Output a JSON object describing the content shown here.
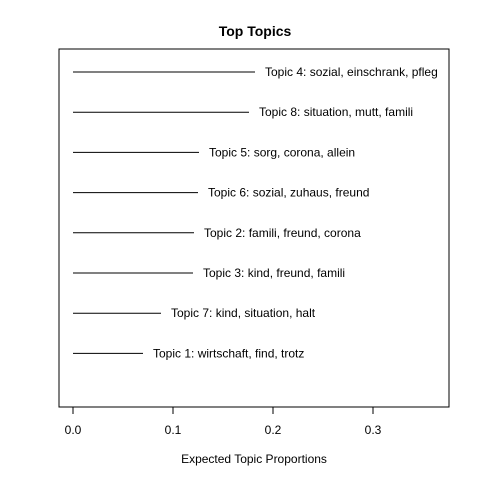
{
  "chart_data": {
    "type": "bar",
    "title": "Top Topics",
    "xlabel": "Expected Topic Proportions",
    "ylabel": "",
    "xlim": [
      -0.0132,
      0.3744
    ],
    "xticks": [
      "0.0",
      "0.1",
      "0.2",
      "0.3"
    ],
    "xtick_values": [
      0,
      0.1,
      0.2,
      0.3
    ],
    "categories": [
      "Topic 4: sozial, einschrank, pfleg",
      "Topic 8: situation, mutt, famili",
      "Topic 5: sorg, corona, allein",
      "Topic 6: sozial, zuhaus, freund",
      "Topic 2: famili, freund, corona",
      "Topic 3: kind, freund, famili",
      "Topic 7: kind, situation, halt",
      "Topic 1: wirtschaft, find, trotz"
    ],
    "values": [
      0.182,
      0.176,
      0.126,
      0.125,
      0.121,
      0.12,
      0.088,
      0.07
    ],
    "grid": false,
    "legend": "none",
    "color": "#000000"
  }
}
